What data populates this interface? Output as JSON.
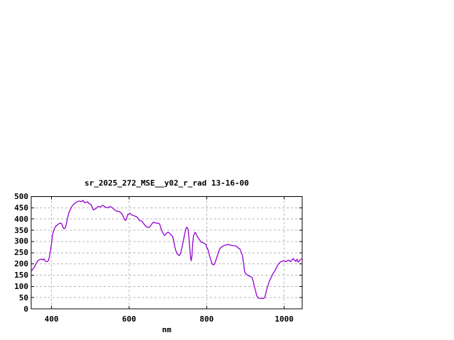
{
  "chart_data": {
    "type": "line",
    "title": "sr_2025_272_MSE__y02_r_rad 13-16-00",
    "xlabel": "nm",
    "ylabel": "",
    "xlim": [
      347.5,
      1046.5
    ],
    "ylim": [
      0,
      500
    ],
    "x_ticks": [
      400,
      600,
      800,
      1000
    ],
    "y_ticks": [
      0,
      50,
      100,
      150,
      200,
      250,
      300,
      350,
      400,
      450,
      500
    ],
    "grid": true,
    "legend": "none",
    "colors": {
      "line": "#9400d3",
      "grid": "#b4b4b4",
      "border": "#000000",
      "background": "#ffffff",
      "text": "#000000"
    },
    "series": [
      {
        "x": [
          348,
          352,
          355,
          358,
          362,
          365,
          368,
          371,
          374,
          377,
          380,
          383,
          386,
          389,
          392,
          395,
          398,
          400,
          402,
          405,
          408,
          411,
          414,
          417,
          420,
          423,
          426,
          429,
          432,
          435,
          438,
          441,
          444,
          448,
          451,
          454,
          457,
          460,
          463,
          466,
          469,
          472,
          476,
          481,
          485,
          490,
          493,
          496,
          499,
          502,
          505,
          508,
          511,
          514,
          517,
          520,
          523,
          526,
          529,
          532,
          535,
          538,
          541,
          545,
          548,
          551,
          554,
          557,
          560,
          563,
          566,
          569,
          572,
          575,
          578,
          581,
          584,
          587,
          590,
          593,
          596,
          599,
          602,
          606,
          609,
          612,
          615,
          618,
          621,
          624,
          627,
          630,
          633,
          636,
          639,
          642,
          645,
          648,
          651,
          654,
          657,
          660,
          663,
          667,
          670,
          673,
          676,
          679,
          682,
          685,
          688,
          691,
          694,
          697,
          700,
          703,
          706,
          709,
          712,
          715,
          718,
          721,
          724,
          727,
          730,
          733,
          736,
          740,
          743,
          746,
          749,
          752,
          755,
          758,
          760,
          762,
          764,
          766,
          768,
          770,
          773,
          776,
          779,
          782,
          785,
          788,
          791,
          794,
          798,
          801,
          804,
          807,
          810,
          813,
          816,
          819,
          822,
          825,
          828,
          831,
          834,
          837,
          840,
          843,
          846,
          850,
          855,
          859,
          862,
          866,
          871,
          874,
          877,
          880,
          883,
          886,
          889,
          892,
          895,
          898,
          901,
          905,
          908,
          911,
          914,
          917,
          920,
          923,
          926,
          929,
          932,
          935,
          938,
          941,
          944,
          947,
          950,
          953,
          956,
          959,
          962,
          965,
          968,
          971,
          975,
          978,
          981,
          984,
          987,
          990,
          993,
          996,
          999,
          1002,
          1005,
          1008,
          1011,
          1014,
          1017,
          1020,
          1023,
          1026,
          1030,
          1033,
          1036,
          1039,
          1042,
          1045,
          1047
        ],
        "y": [
          168,
          178,
          185,
          194,
          207,
          215,
          218,
          220,
          221,
          218,
          223,
          215,
          210,
          210,
          215,
          237,
          269,
          293,
          326,
          345,
          360,
          368,
          372,
          377,
          380,
          382,
          379,
          366,
          356,
          360,
          377,
          403,
          424,
          441,
          452,
          460,
          465,
          470,
          474,
          477,
          479,
          480,
          477,
          483,
          473,
          475,
          477,
          469,
          467,
          464,
          452,
          440,
          444,
          447,
          450,
          456,
          455,
          454,
          458,
          461,
          458,
          454,
          452,
          450,
          453,
          456,
          453,
          450,
          445,
          440,
          437,
          435,
          434,
          433,
          429,
          424,
          415,
          402,
          394,
          398,
          419,
          422,
          426,
          419,
          417,
          415,
          413,
          411,
          408,
          400,
          394,
          392,
          391,
          383,
          376,
          370,
          366,
          363,
          362,
          365,
          374,
          381,
          386,
          383,
          382,
          381,
          381,
          377,
          359,
          345,
          336,
          327,
          331,
          337,
          341,
          339,
          333,
          327,
          324,
          305,
          275,
          257,
          245,
          240,
          238,
          248,
          270,
          303,
          330,
          355,
          364,
          355,
          303,
          240,
          214,
          232,
          290,
          324,
          333,
          341,
          333,
          322,
          314,
          307,
          298,
          295,
          295,
          291,
          287,
          272,
          261,
          240,
          222,
          205,
          197,
          196,
          207,
          224,
          238,
          254,
          268,
          273,
          277,
          280,
          283,
          284,
          287,
          284,
          284,
          282,
          281,
          280,
          279,
          272,
          270,
          266,
          253,
          240,
          207,
          166,
          156,
          151,
          148,
          145,
          142,
          140,
          124,
          101,
          82,
          60,
          50,
          47,
          46,
          46,
          46,
          46,
          50,
          71,
          93,
          108,
          124,
          135,
          145,
          156,
          166,
          177,
          187,
          196,
          203,
          208,
          211,
          213,
          214,
          212,
          210,
          214,
          217,
          213,
          210,
          217,
          224,
          217,
          212,
          221,
          208,
          214,
          219,
          222,
          224
        ]
      }
    ]
  }
}
